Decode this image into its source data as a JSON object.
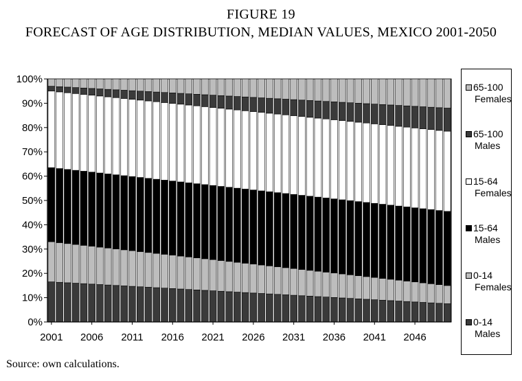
{
  "figure": {
    "number": "FIGURE 19",
    "title": "FORECAST OF AGE DISTRIBUTION, MEDIAN VALUES, MEXICO 2001-2050",
    "source": "Source: own calculations."
  },
  "chart_data": {
    "type": "bar",
    "stacked": true,
    "percent": true,
    "years_start": 2001,
    "years_end": 2050,
    "x_tick_labels": [
      "2001",
      "2006",
      "2011",
      "2016",
      "2021",
      "2026",
      "2031",
      "2036",
      "2041",
      "2046"
    ],
    "y_tick_labels": [
      "0%",
      "10%",
      "20%",
      "30%",
      "40%",
      "50%",
      "60%",
      "70%",
      "80%",
      "90%",
      "100%"
    ],
    "ylim": [
      0,
      100
    ],
    "legend_position": "right",
    "series": [
      {
        "name": "0-14 Males",
        "color": "#3a3a3a",
        "start": 16.5,
        "end": 7.5
      },
      {
        "name": "0-14 Females",
        "color": "#bdbdbd",
        "start": 16.5,
        "end": 7.5
      },
      {
        "name": "15-64 Males",
        "color": "#000000",
        "start": 30.5,
        "end": 30.5
      },
      {
        "name": "15-64 Females",
        "color": "#ffffff",
        "start": 31.5,
        "end": 33.0
      },
      {
        "name": "65-100 Males",
        "color": "#3a3a3a",
        "start": 2.0,
        "end": 9.5
      },
      {
        "name": "65-100 Females",
        "color": "#bdbdbd",
        "start": 3.0,
        "end": 12.0
      }
    ],
    "title": "FORECAST OF AGE DISTRIBUTION, MEDIAN VALUES, MEXICO 2001-2050",
    "xlabel": "",
    "ylabel": ""
  },
  "legend": {
    "items": [
      {
        "line1": "65-100",
        "line2": "Females",
        "color": "#bdbdbd"
      },
      {
        "line1": "65-100",
        "line2": "Males",
        "color": "#3a3a3a"
      },
      {
        "line1": "15-64",
        "line2": "Females",
        "color": "#ffffff"
      },
      {
        "line1": "15-64",
        "line2": "Males",
        "color": "#000000"
      },
      {
        "line1": "0-14",
        "line2": "Females",
        "color": "#bdbdbd"
      },
      {
        "line1": "0-14",
        "line2": "Males",
        "color": "#3a3a3a"
      }
    ]
  }
}
